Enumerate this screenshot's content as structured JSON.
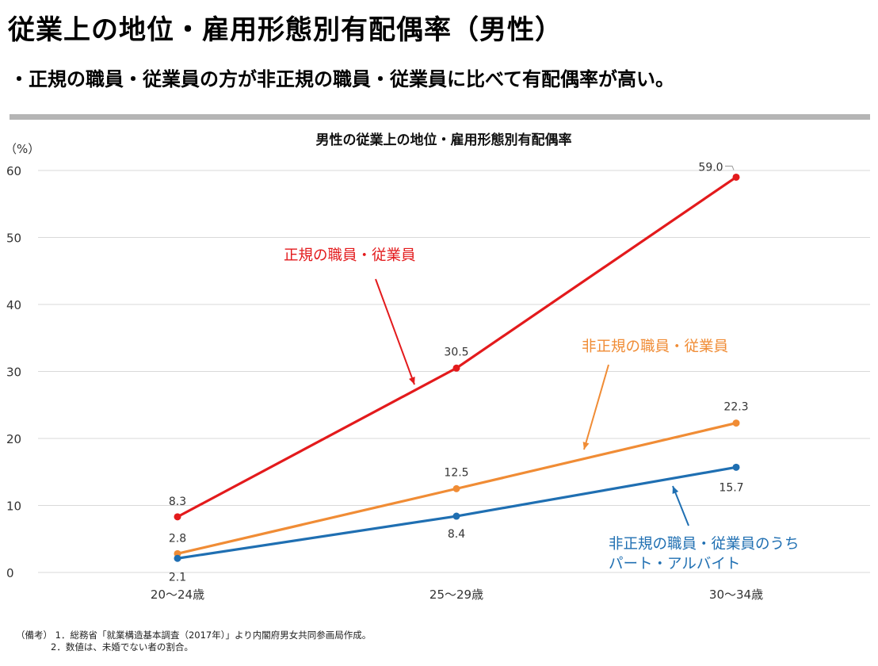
{
  "header": {
    "title": "従業上の地位・雇用形態別有配偶率（男性）",
    "lead": "・正規の職員・従業員の方が非正規の職員・従業員に比べて有配偶率が高い。"
  },
  "notes": {
    "label": "（備考）",
    "items": [
      "1．総務省「就業構造基本調査（2017年）」より内閣府男女共同参画局作成。",
      "2．数値は、未婚でない者の割合。"
    ]
  },
  "chart_data": {
    "type": "line",
    "title": "男性の従業上の地位・雇用形態別有配偶率",
    "ylabel": "（%）",
    "xlabel": "",
    "categories": [
      "20～24歳",
      "25～29歳",
      "30～34歳"
    ],
    "ylim": [
      0,
      60
    ],
    "yticks": [
      0,
      10,
      20,
      30,
      40,
      50,
      60
    ],
    "grid": true,
    "series": [
      {
        "name": "正規の職員・従業員",
        "values": [
          8.3,
          30.5,
          59.0
        ],
        "labels": [
          "8.3",
          "30.5",
          "59.0"
        ],
        "color": "#e31a1c"
      },
      {
        "name": "非正規の職員・従業員",
        "values": [
          2.8,
          12.5,
          22.3
        ],
        "labels": [
          "2.8",
          "12.5",
          "22.3"
        ],
        "color": "#f08c35"
      },
      {
        "name": "非正規の職員・従業員のうちパート・アルバイト",
        "label_lines": [
          "非正規の職員・従業員のうち",
          "パート・アルバイト"
        ],
        "values": [
          2.1,
          8.4,
          15.7
        ],
        "labels": [
          "2.1",
          "8.4",
          "15.7"
        ],
        "color": "#1f6fb2"
      }
    ]
  }
}
